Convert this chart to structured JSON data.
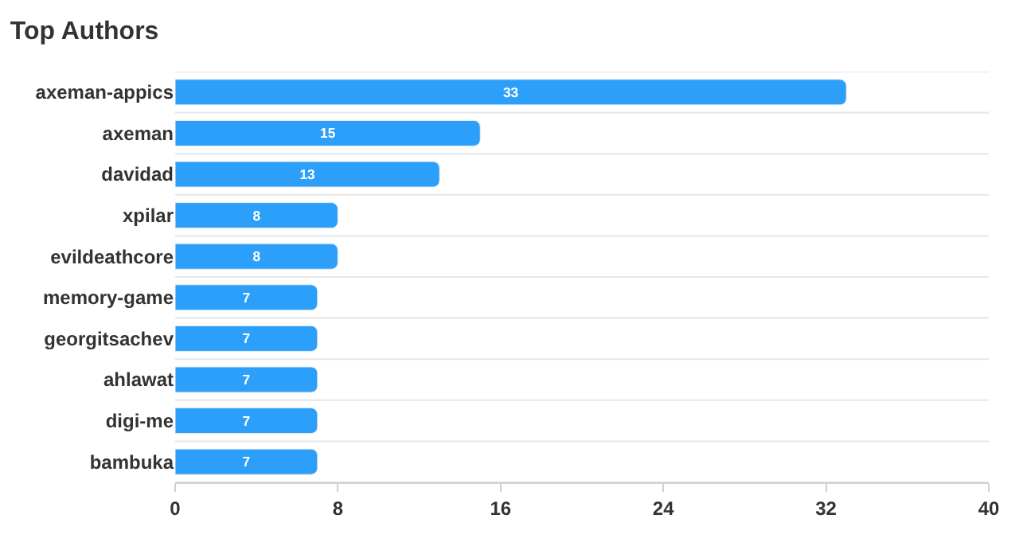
{
  "chart_data": {
    "type": "bar",
    "title": "Top Authors",
    "orientation": "horizontal",
    "categories": [
      "axeman-appics",
      "axeman",
      "davidad",
      "xpilar",
      "evildeathcore",
      "memory-game",
      "georgitsachev",
      "ahlawat",
      "digi-me",
      "bambuka"
    ],
    "values": [
      33,
      15,
      13,
      8,
      8,
      7,
      7,
      7,
      7,
      7
    ],
    "color": "#2b9ff9",
    "xlim": [
      0,
      40
    ],
    "xticks": [
      0,
      8,
      16,
      24,
      32,
      40
    ],
    "grid": "y",
    "data_labels": true
  }
}
